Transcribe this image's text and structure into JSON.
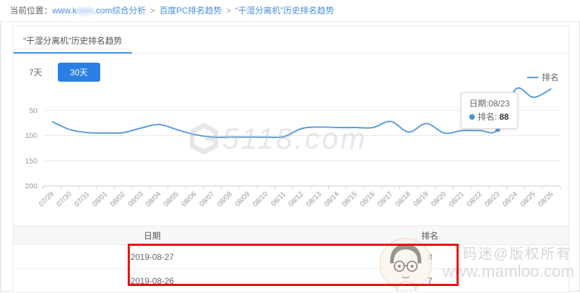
{
  "breadcrumb": {
    "label": "当前位置：",
    "separator": ">",
    "links": [
      {
        "prefix": "www.k",
        "masked": "xxxx",
        "suffix": ".com综合分析"
      },
      {
        "text": "百度PC排名趋势"
      },
      {
        "text": "“干湿分离机”历史排名趋势"
      }
    ]
  },
  "panel": {
    "tab_title": "“干湿分离机”历史排名趋势"
  },
  "controls": {
    "buttons": [
      {
        "label": "7天",
        "active": false
      },
      {
        "label": "30天",
        "active": true
      }
    ]
  },
  "chart_data": {
    "type": "line",
    "title": "",
    "legend": [
      "排名"
    ],
    "legend_position": "top-right",
    "grid": true,
    "y_inverted": true,
    "ylim": [
      0,
      200
    ],
    "y_ticks": [
      50,
      100,
      150,
      200
    ],
    "x_label_rotation": -45,
    "x": [
      "07/29",
      "07/30",
      "07/31",
      "08/01",
      "08/02",
      "08/03",
      "08/04",
      "08/05",
      "08/06",
      "08/07",
      "08/08",
      "08/09",
      "08/10",
      "08/11",
      "08/12",
      "08/13",
      "08/14",
      "08/15",
      "08/16",
      "08/17",
      "08/18",
      "08/19",
      "08/20",
      "08/21",
      "08/22",
      "08/23",
      "08/24",
      "08/25",
      "08/26"
    ],
    "series": [
      {
        "name": "排名",
        "color": "#5a9cd8",
        "values": [
          72,
          88,
          94,
          95,
          94,
          85,
          78,
          88,
          98,
          103,
          103,
          103,
          103,
          102,
          86,
          83,
          84,
          84,
          84,
          72,
          93,
          76,
          95,
          90,
          90,
          88,
          8,
          24,
          7
        ]
      }
    ],
    "highlight_point": {
      "x": "08/23",
      "value": 88,
      "index": 25
    },
    "tooltip": {
      "date_text": "日期:08/23",
      "series_label": "排名:",
      "value": "88"
    }
  },
  "table": {
    "headers": [
      "日期",
      "排名"
    ],
    "rows": [
      {
        "date": "2019-08-27",
        "rank": "8"
      },
      {
        "date": "2019-08-26",
        "rank": "7"
      }
    ]
  },
  "watermarks": {
    "chart_logo_text": "5118.com",
    "owner_line1": "码迷@版权所有",
    "owner_line2": "www.mamloo.com"
  },
  "colors": {
    "accent_button": "#2b7fe4",
    "tab_underline": "#3a8ee6",
    "line": "#5a9cd8",
    "link": "#4a8fe2",
    "annotation_box": "#ea0b0b"
  }
}
